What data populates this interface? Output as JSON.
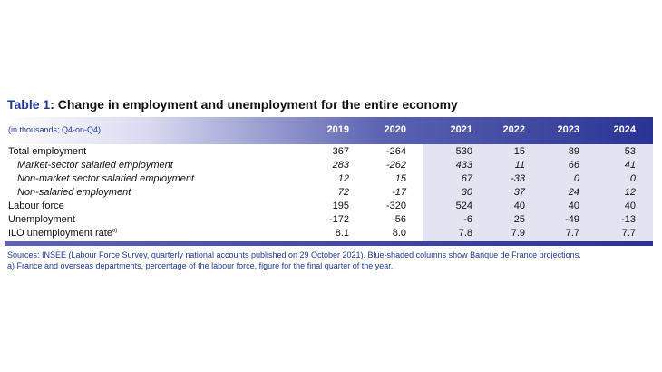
{
  "title": {
    "prefix": "Table 1",
    "text": ": Change in employment and unemployment for the entire economy"
  },
  "header": {
    "units": "(in thousands; Q4-on-Q4)",
    "years": [
      "2019",
      "2020",
      "2021",
      "2022",
      "2023",
      "2024"
    ]
  },
  "rows": [
    {
      "label": "Total employment",
      "values": [
        "367",
        "-264",
        "530",
        "15",
        "89",
        "53"
      ]
    },
    {
      "label": "Market-sector salaried employment",
      "values": [
        "283",
        "-262",
        "433",
        "11",
        "66",
        "41"
      ]
    },
    {
      "label": "Non-market sector salaried employment",
      "values": [
        "12",
        "15",
        "67",
        "-33",
        "0",
        "0"
      ]
    },
    {
      "label": "Non-salaried employment",
      "values": [
        "72",
        "-17",
        "30",
        "37",
        "24",
        "12"
      ]
    },
    {
      "label": "Labour force",
      "values": [
        "195",
        "-320",
        "524",
        "40",
        "40",
        "40"
      ]
    },
    {
      "label": "Unemployment",
      "values": [
        "-172",
        "-56",
        "-6",
        "25",
        "-49",
        "-13"
      ]
    },
    {
      "label": "ILO unemployment rate",
      "sup": "a)",
      "values": [
        "8.1",
        "8.0",
        "7.8",
        "7.9",
        "7.7",
        "7.7"
      ]
    }
  ],
  "notes": {
    "sources": "Sources: INSEE (Labour Force Survey, quarterly national accounts published on 29 October 2021). Blue-shaded columns show Banque de France projections.",
    "footnote": "a)  France and overseas departments, percentage of the labour force, figure for the final quarter of the year."
  },
  "colors": {
    "title_accent": "#1f3a93",
    "header_dark": "#2a3395",
    "projection_shade": "#e4e3f2"
  }
}
